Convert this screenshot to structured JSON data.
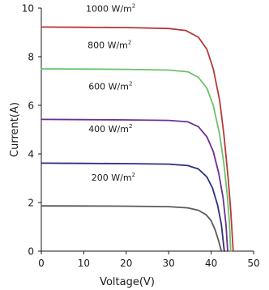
{
  "chart_data": {
    "type": "line",
    "xlabel": "Voltage(V)",
    "ylabel": "Current(A)",
    "xlim": [
      0,
      50
    ],
    "ylim": [
      0,
      10
    ],
    "xticks": [
      0,
      10,
      20,
      30,
      40,
      50
    ],
    "yticks": [
      0,
      2,
      4,
      6,
      8,
      10
    ],
    "grid": false,
    "legend": "none",
    "series": [
      {
        "label": "1000 W/m",
        "label_sup": "2",
        "color": "#b5393a",
        "label_at": [
          10.5,
          9.85
        ],
        "points": [
          [
            0,
            9.22
          ],
          [
            10,
            9.21
          ],
          [
            20,
            9.2
          ],
          [
            30,
            9.16
          ],
          [
            34,
            9.08
          ],
          [
            37,
            8.8
          ],
          [
            39,
            8.3
          ],
          [
            40.5,
            7.5
          ],
          [
            42,
            6.2
          ],
          [
            43,
            4.8
          ],
          [
            44,
            3.0
          ],
          [
            44.6,
            1.7
          ],
          [
            45.2,
            0
          ]
        ]
      },
      {
        "label": "800 W/m",
        "label_sup": "2",
        "color": "#6cc26c",
        "label_at": [
          10.9,
          8.35
        ],
        "points": [
          [
            0,
            7.5
          ],
          [
            10,
            7.49
          ],
          [
            20,
            7.48
          ],
          [
            30,
            7.45
          ],
          [
            34.5,
            7.38
          ],
          [
            37,
            7.15
          ],
          [
            39,
            6.7
          ],
          [
            40.5,
            6.0
          ],
          [
            42,
            4.8
          ],
          [
            43,
            3.6
          ],
          [
            43.8,
            2.3
          ],
          [
            44.3,
            1.2
          ],
          [
            44.6,
            0
          ]
        ]
      },
      {
        "label": "600 W/m",
        "label_sup": "2",
        "color": "#6b3092",
        "label_at": [
          11.1,
          6.65
        ],
        "points": [
          [
            0,
            5.42
          ],
          [
            10,
            5.41
          ],
          [
            20,
            5.4
          ],
          [
            30,
            5.38
          ],
          [
            34.5,
            5.32
          ],
          [
            37,
            5.12
          ],
          [
            39,
            4.7
          ],
          [
            40.5,
            4.1
          ],
          [
            41.8,
            3.2
          ],
          [
            42.8,
            2.2
          ],
          [
            43.5,
            1.1
          ],
          [
            43.9,
            0
          ]
        ]
      },
      {
        "label": "400 W/m",
        "label_sup": "2",
        "color": "#2c2f7f",
        "label_at": [
          11.1,
          4.9
        ],
        "points": [
          [
            0,
            3.62
          ],
          [
            10,
            3.61
          ],
          [
            20,
            3.6
          ],
          [
            30,
            3.58
          ],
          [
            34.5,
            3.52
          ],
          [
            37,
            3.38
          ],
          [
            39,
            3.05
          ],
          [
            40.3,
            2.6
          ],
          [
            41.5,
            1.9
          ],
          [
            42.4,
            1.1
          ],
          [
            43.1,
            0
          ]
        ]
      },
      {
        "label": "200 W/m",
        "label_sup": "2",
        "color": "#5a5a5a",
        "label_at": [
          11.8,
          2.9
        ],
        "points": [
          [
            0,
            1.86
          ],
          [
            10,
            1.855
          ],
          [
            20,
            1.85
          ],
          [
            30,
            1.83
          ],
          [
            34.5,
            1.78
          ],
          [
            37,
            1.68
          ],
          [
            38.8,
            1.5
          ],
          [
            40,
            1.25
          ],
          [
            41,
            0.85
          ],
          [
            41.8,
            0.4
          ],
          [
            42.4,
            0
          ]
        ]
      }
    ]
  }
}
